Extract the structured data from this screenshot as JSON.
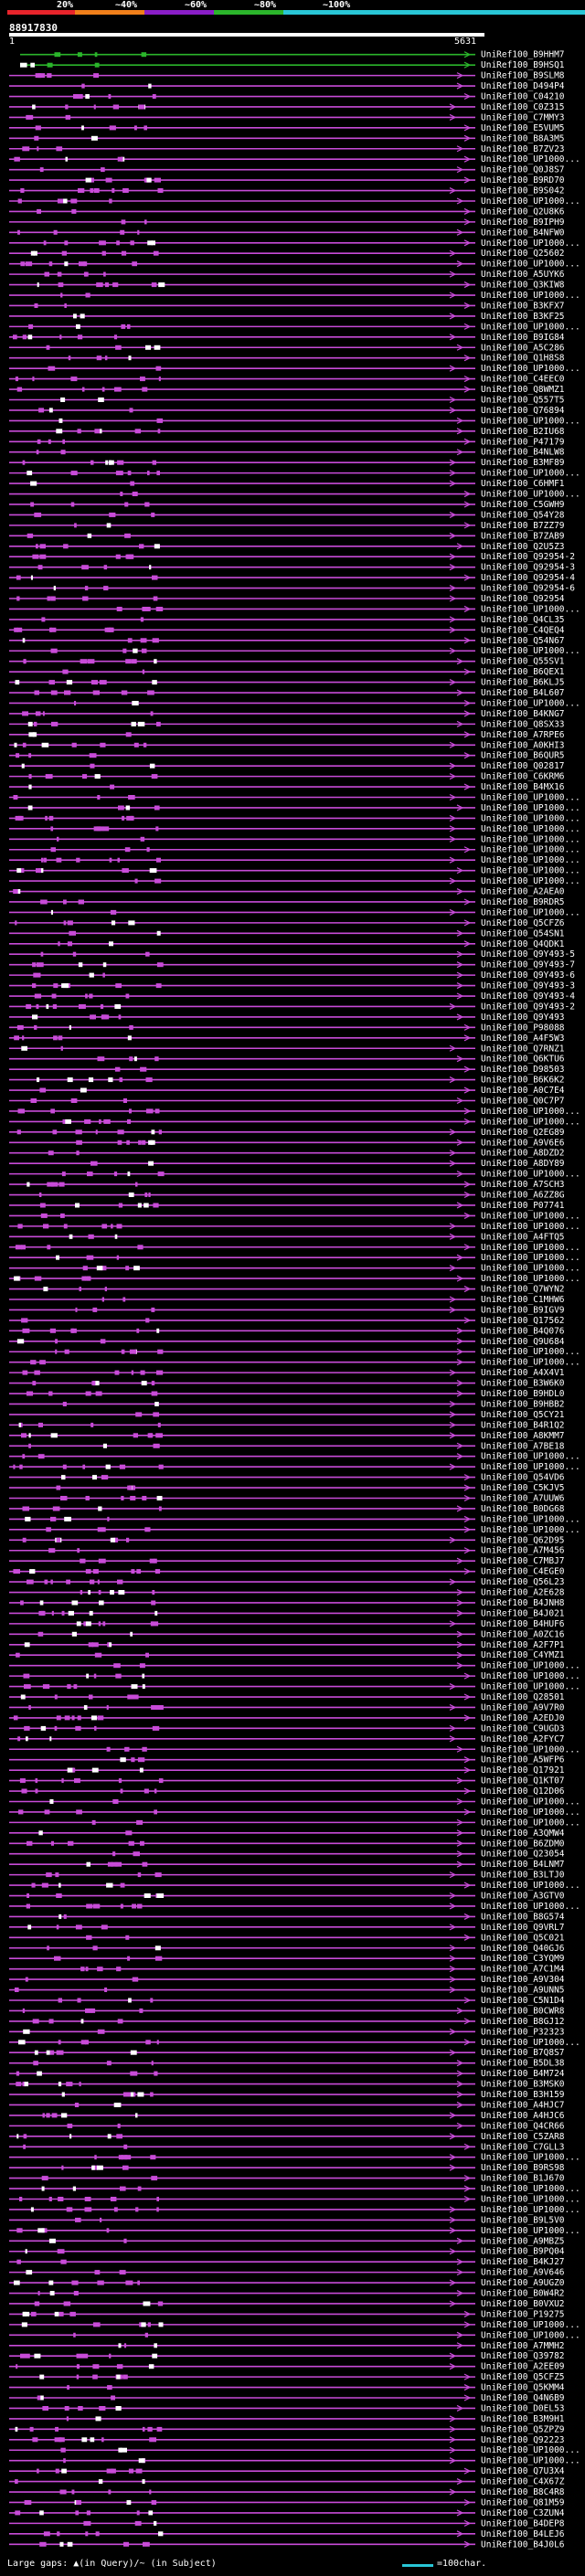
{
  "legend": {
    "ticks": [
      {
        "label": "20%",
        "color": "#e8242b"
      },
      {
        "label": "~40%",
        "color": "#f07f1a"
      },
      {
        "label": "~60%",
        "color": "#8a1ec7"
      },
      {
        "label": "~80%",
        "color": "#2bb52b"
      },
      {
        "label": "~100%",
        "color": "#29c6d6"
      }
    ]
  },
  "query": {
    "id": "88917830",
    "start": "1",
    "end": "5631"
  },
  "colors": {
    "background": "#000000",
    "hit_line": "#c84bd8",
    "top_hit_line": "#2bb52b",
    "gap_mark": "#f07f1a",
    "query_bar": "#ffffff",
    "scale_line": "#29c6d6"
  },
  "hits": [
    "UniRef100_B9HHM7",
    "UniRef100_B9HSQ1",
    "UniRef100_B9SLM8",
    "UniRef100_D494P4",
    "UniRef100_C04210",
    "UniRef100_C0Z315",
    "UniRef100_C7MMY3",
    "UniRef100_E5VUM5",
    "UniRef100_B8A3M5",
    "UniRef100_B7ZV23",
    "UniRef100_UP1000...",
    "UniRef100_Q0J8S7",
    "UniRef100_B9RD70",
    "UniRef100_B9S042",
    "UniRef100_UP1000...",
    "UniRef100_Q2U8K6",
    "UniRef100_B9IPH9",
    "UniRef100_B4NFW0",
    "UniRef100_UP1000...",
    "UniRef100_Q25602",
    "UniRef100_UP1000...",
    "UniRef100_A5UYK6",
    "UniRef100_Q3KIW8",
    "UniRef100_UP1000...",
    "UniRef100_B3KFX7",
    "UniRef100_B3KF25",
    "UniRef100_UP1000...",
    "UniRef100_B9IG84",
    "UniRef100_A5C286",
    "UniRef100_Q1H8S8",
    "UniRef100_UP1000...",
    "UniRef100_C4EEC0",
    "UniRef100_Q8WMZ1",
    "UniRef100_Q557T5",
    "UniRef100_Q76894",
    "UniRef100_UP1000...",
    "UniRef100_B2IU68",
    "UniRef100_P47179",
    "UniRef100_B4NLW8",
    "UniRef100_B3MF89",
    "UniRef100_UP1000...",
    "UniRef100_C6HMF1",
    "UniRef100_UP1000...",
    "UniRef100_C5GWH9",
    "UniRef100_Q54Y28",
    "UniRef100_B7ZZ79",
    "UniRef100_B7ZAB9",
    "UniRef100_Q2U5Z3",
    "UniRef100_Q92954-2",
    "UniRef100_Q92954-3",
    "UniRef100_Q92954-4",
    "UniRef100_Q92954-6",
    "UniRef100_Q92954",
    "UniRef100_UP1000...",
    "UniRef100_Q4CL35",
    "UniRef100_C4QEQ4",
    "UniRef100_Q54N67",
    "UniRef100_UP1000...",
    "UniRef100_Q55SV1",
    "UniRef100_B6QEX1",
    "UniRef100_B6KLJ5",
    "UniRef100_B4L607",
    "UniRef100_UP1000...",
    "UniRef100_B4KNG7",
    "UniRef100_Q8SX33",
    "UniRef100_A7RPE6",
    "UniRef100_A0KHI3",
    "UniRef100_B6QUR5",
    "UniRef100_Q02817",
    "UniRef100_C6KRM6",
    "UniRef100_B4MX16",
    "UniRef100_UP1000...",
    "UniRef100_UP1000...",
    "UniRef100_UP1000...",
    "UniRef100_UP1000...",
    "UniRef100_UP1000...",
    "UniRef100_UP1000...",
    "UniRef100_UP1000...",
    "UniRef100_UP1000...",
    "UniRef100_UP1000...",
    "UniRef100_A2AEA0",
    "UniRef100_B9RDR5",
    "UniRef100_UP1000...",
    "UniRef100_Q5CFZ6",
    "UniRef100_Q54SN1",
    "UniRef100_Q4QDK1",
    "UniRef100_Q9Y493-5",
    "UniRef100_Q9Y493-7",
    "UniRef100_Q9Y493-6",
    "UniRef100_Q9Y493-3",
    "UniRef100_Q9Y493-4",
    "UniRef100_Q9Y493-2",
    "UniRef100_Q9Y493",
    "UniRef100_P98088",
    "UniRef100_A4F5W3",
    "UniRef100_Q7RNZ1",
    "UniRef100_Q6KTU6",
    "UniRef100_D98503",
    "UniRef100_B6K6K2",
    "UniRef100_A0C7E4",
    "UniRef100_Q0C7P7",
    "UniRef100_UP1000...",
    "UniRef100_UP1000...",
    "UniRef100_Q2EG89",
    "UniRef100_A9V6E6",
    "UniRef100_A8DZD2",
    "UniRef100_A8DY89",
    "UniRef100_UP1000...",
    "UniRef100_A7SCH3",
    "UniRef100_A6ZZ8G",
    "UniRef100_P07741",
    "UniRef100_UP1000...",
    "UniRef100_UP1000...",
    "UniRef100_A4FTQ5",
    "UniRef100_UP1000...",
    "UniRef100_UP1000...",
    "UniRef100_UP1000...",
    "UniRef100_UP1000...",
    "UniRef100_Q7WYN2",
    "UniRef100_C1MHW6",
    "UniRef100_B9IGV9",
    "UniRef100_Q17562",
    "UniRef100_B4Q076",
    "UniRef100_Q9U684",
    "UniRef100_UP1000...",
    "UniRef100_UP1000...",
    "UniRef100_A4X4V1",
    "UniRef100_B3W6K0",
    "UniRef100_B9HDL0",
    "UniRef100_B9HBB2",
    "UniRef100_Q5CY21",
    "UniRef100_B4R1Q2",
    "UniRef100_A8KMM7",
    "UniRef100_A7BE18",
    "UniRef100_UP1000...",
    "UniRef100_UP1000...",
    "UniRef100_Q54VD6",
    "UniRef100_C5KJV5",
    "UniRef100_A7UUW6",
    "UniRef100_B0DG68",
    "UniRef100_UP1000...",
    "UniRef100_UP1000...",
    "UniRef100_Q62D95",
    "UniRef100_A7M456",
    "UniRef100_C7MBJ7",
    "UniRef100_C4EGE0",
    "UniRef100_Q56L23",
    "UniRef100_A2E628",
    "UniRef100_B4JNH8",
    "UniRef100_B4J021",
    "UniRef100_B4HUF6",
    "UniRef100_A0ZC16",
    "UniRef100_A2F7P1",
    "UniRef100_C4YMZ1",
    "UniRef100_UP1000...",
    "UniRef100_UP1000...",
    "UniRef100_UP1000...",
    "UniRef100_Q28501",
    "UniRef100_A9V7R0",
    "UniRef100_A2EDJ0",
    "UniRef100_C9UGD3",
    "UniRef100_A2FYC7",
    "UniRef100_UP1000...",
    "UniRef100_A5WFP6",
    "UniRef100_Q17921",
    "UniRef100_Q1KT07",
    "UniRef100_Q12D06",
    "UniRef100_UP1000...",
    "UniRef100_UP1000...",
    "UniRef100_UP1000...",
    "UniRef100_A3QMW4",
    "UniRef100_B6ZDM0",
    "UniRef100_Q23054",
    "UniRef100_B4LNM7",
    "UniRef100_B3LTJ0",
    "UniRef100_UP1000...",
    "UniRef100_A3GTV0",
    "UniRef100_UP1000...",
    "UniRef100_B8G574",
    "UniRef100_Q9VRL7",
    "UniRef100_Q5C021",
    "UniRef100_Q40GJ6",
    "UniRef100_C3YQM9",
    "UniRef100_A7C1M4",
    "UniRef100_A9V304",
    "UniRef100_A9UNN5",
    "UniRef100_C5N1D4",
    "UniRef100_B0CWR8",
    "UniRef100_B8GJ12",
    "UniRef100_P32323",
    "UniRef100_UP1000...",
    "UniRef100_B7Q8S7",
    "UniRef100_B5DL38",
    "UniRef100_B4M724",
    "UniRef100_B3MSK0",
    "UniRef100_B3H159",
    "UniRef100_A4HJC7",
    "UniRef100_A4HJC6",
    "UniRef100_Q4CR66",
    "UniRef100_C5ZAR8",
    "UniRef100_C7GLL3",
    "UniRef100_UP1000...",
    "UniRef100_B9RS98",
    "UniRef100_B1J670",
    "UniRef100_UP1000...",
    "UniRef100_UP1000...",
    "UniRef100_UP1000...",
    "UniRef100_B9L5V0",
    "UniRef100_UP1000...",
    "UniRef100_A9MBZ5",
    "UniRef100_B9PQ04",
    "UniRef100_B4KJ27",
    "UniRef100_A9V646",
    "UniRef100_A9UGZ0",
    "UniRef100_B0W4R2",
    "UniRef100_B0VXU2",
    "UniRef100_P19275",
    "UniRef100_UP1000...",
    "UniRef100_UP1000...",
    "UniRef100_A7MMH2",
    "UniRef100_Q39782",
    "UniRef100_A2EE09",
    "UniRef100_Q5CFZ5",
    "UniRef100_Q5KMM4",
    "UniRef100_Q4N6B9",
    "UniRef100_D0EL53",
    "UniRef100_B3M9H1",
    "UniRef100_Q5ZPZ9",
    "UniRef100_Q92223",
    "UniRef100_UP1000...",
    "UniRef100_UP1000...",
    "UniRef100_Q7U3X4",
    "UniRef100_C4X67Z",
    "UniRef100_B8C4R8",
    "UniRef100_Q81M59",
    "UniRef100_C3ZUN4",
    "UniRef100_B4DEP8",
    "UniRef100_B4LEJ6",
    "UniRef100_B4J0L6"
  ],
  "footer": {
    "gap_text": "Large gaps: ▲(in Query)/~ (in Subject)",
    "scale_text": "=100char."
  }
}
